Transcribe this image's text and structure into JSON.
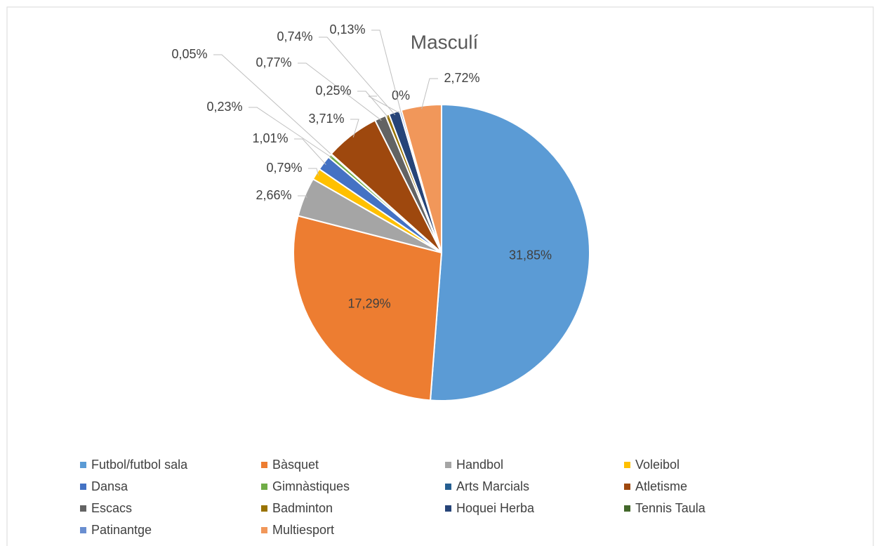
{
  "chart_data": {
    "type": "pie",
    "title": "Masculí",
    "categories": [
      "Futbol/futbol sala",
      "Bàsquet",
      "Handbol",
      "Voleibol",
      "Dansa",
      "Gimnàstiques",
      "Arts Marcials",
      "Atletisme",
      "Escacs",
      "Badminton",
      "Hoquei Herba",
      "Tennis Taula",
      "Patinantge",
      "Multiesport"
    ],
    "values": [
      31.85,
      17.29,
      2.66,
      0.79,
      1.01,
      0.23,
      0.05,
      3.71,
      0.77,
      0.25,
      0.74,
      0,
      0.13,
      2.72
    ],
    "value_labels": [
      "31,85%",
      "17,29%",
      "2,66%",
      "0,79%",
      "1,01%",
      "0,23%",
      "0,05%",
      "3,71%",
      "0,77%",
      "0,25%",
      "0,74%",
      "0%",
      "0,13%",
      "2,72%"
    ],
    "colors": [
      "#5b9bd5",
      "#ed7d31",
      "#a5a5a5",
      "#ffc000",
      "#4472c4",
      "#70ad47",
      "#255e91",
      "#9e480e",
      "#636363",
      "#997300",
      "#264478",
      "#43682b",
      "#698ed0",
      "#f1975a"
    ],
    "legend": "bottom"
  }
}
